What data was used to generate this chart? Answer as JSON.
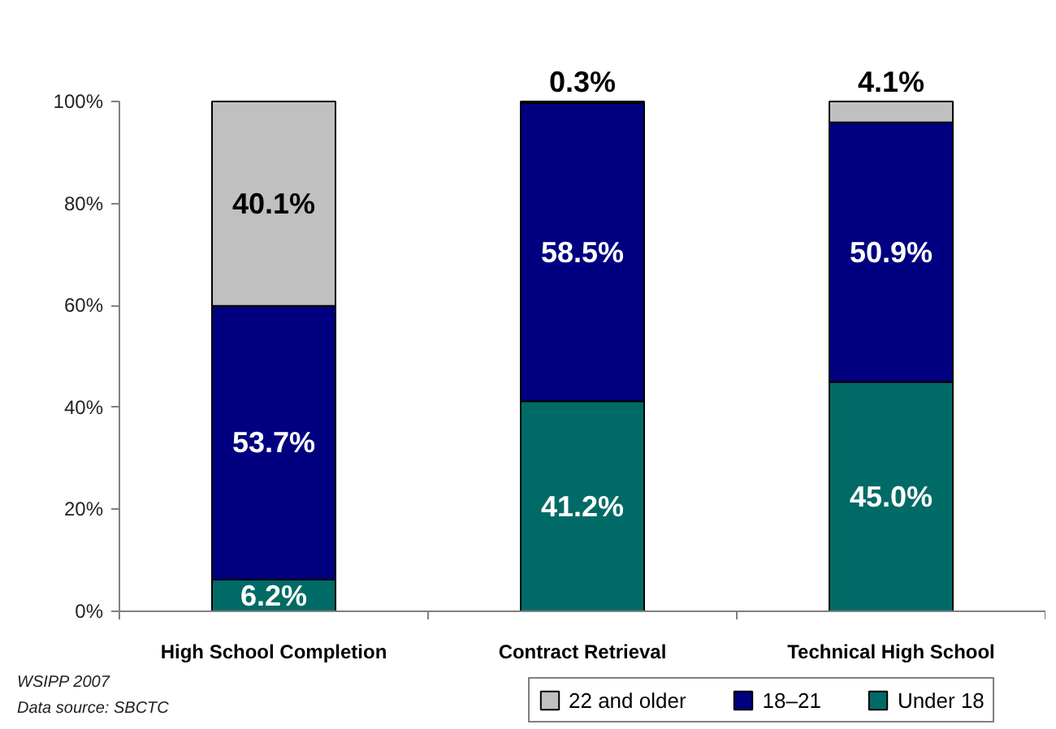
{
  "chart_data": {
    "type": "bar",
    "stacked": true,
    "categories": [
      "High School Completion",
      "Contract Retrieval",
      "Technical High School"
    ],
    "series": [
      {
        "name": "Under 18",
        "color": "#006b66",
        "values": [
          6.2,
          41.2,
          45.0
        ],
        "value_labels": [
          "6.2%",
          "41.2%",
          "45.0%"
        ]
      },
      {
        "name": "18–21",
        "color": "#000080",
        "values": [
          53.7,
          58.5,
          50.9
        ],
        "value_labels": [
          "53.7%",
          "58.5%",
          "50.9%"
        ]
      },
      {
        "name": "22 and older",
        "color": "#c0c0c0",
        "values": [
          40.1,
          0.3,
          4.1
        ],
        "value_labels": [
          "40.1%",
          "0.3%",
          "4.1%"
        ]
      }
    ],
    "ylim": [
      0,
      100
    ],
    "yticks": [
      {
        "value": 0,
        "label": "0%"
      },
      {
        "value": 20,
        "label": "20%"
      },
      {
        "value": 40,
        "label": "40%"
      },
      {
        "value": 60,
        "label": "60%"
      },
      {
        "value": 80,
        "label": "80%"
      },
      {
        "value": 100,
        "label": "100%"
      }
    ],
    "grid": false,
    "legend": "bottom right",
    "annotations": [
      "WSIPP 2007",
      "Data source: SBCTC"
    ]
  }
}
